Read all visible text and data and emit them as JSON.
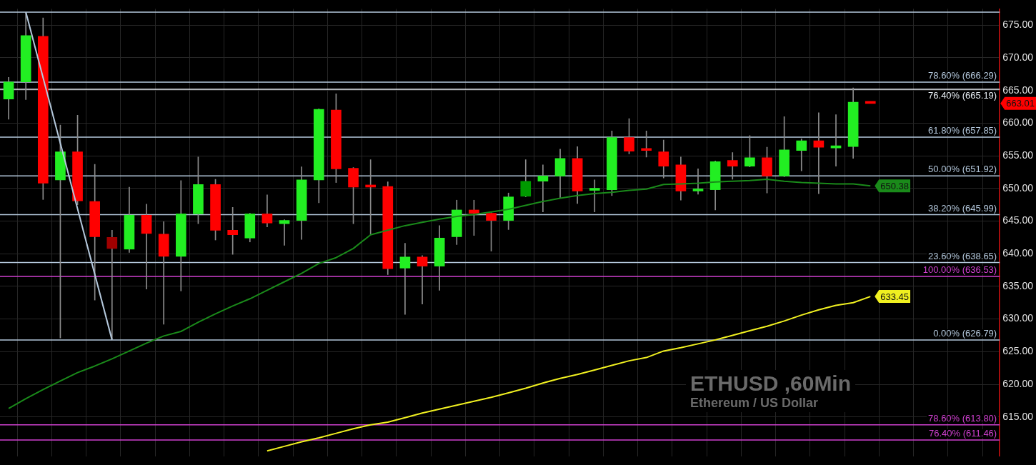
{
  "chart_data": {
    "type": "candlestick",
    "title": "ETHUSD ,60Min",
    "subtitle": "Ethereum / US Dollar",
    "categories": [
      null,
      null,
      null,
      null,
      null,
      null,
      null,
      null,
      null,
      null,
      null,
      null,
      null,
      null,
      null,
      null,
      null,
      null,
      null,
      null,
      null,
      null,
      null,
      null,
      null,
      null,
      null,
      null,
      null,
      null,
      null,
      null,
      null,
      null,
      null,
      null,
      null,
      null,
      null,
      null,
      null,
      null,
      null,
      null,
      null,
      null,
      null,
      null,
      null,
      null,
      null
    ],
    "ohlc": [
      [
        663.7,
        667.0,
        660.6,
        666.3
      ],
      [
        666.3,
        677.0,
        663.6,
        673.4
      ],
      [
        673.3,
        676.1,
        648.3,
        650.8
      ],
      [
        651.3,
        659.7,
        627.1,
        655.6
      ],
      [
        655.6,
        661.2,
        647.5,
        648.1
      ],
      [
        648.0,
        653.7,
        632.9,
        642.6
      ],
      [
        642.5,
        643.6,
        626.8,
        640.8
      ],
      [
        640.7,
        650.2,
        640.2,
        645.9
      ],
      [
        645.9,
        647.6,
        634.6,
        643.1
      ],
      [
        643.0,
        644.9,
        629.2,
        639.6
      ],
      [
        639.6,
        651.2,
        634.3,
        646.1
      ],
      [
        646.1,
        654.8,
        644.6,
        650.6
      ],
      [
        650.6,
        651.4,
        642.1,
        643.6
      ],
      [
        643.6,
        647.1,
        639.9,
        642.9
      ],
      [
        642.4,
        646.2,
        641.8,
        646.1
      ],
      [
        646.1,
        649.0,
        644.1,
        644.7
      ],
      [
        644.6,
        645.2,
        641.3,
        645.1
      ],
      [
        645.1,
        653.3,
        642.2,
        651.3
      ],
      [
        651.3,
        662.2,
        647.8,
        662.1
      ],
      [
        662.0,
        664.5,
        650.9,
        653.0
      ],
      [
        653.1,
        653.2,
        644.6,
        650.2
      ],
      [
        650.3,
        654.4,
        642.9,
        650.2
      ],
      [
        650.3,
        651.0,
        636.8,
        637.7
      ],
      [
        637.8,
        641.6,
        630.7,
        639.5
      ],
      [
        639.5,
        639.7,
        632.3,
        638.1
      ],
      [
        638.1,
        644.3,
        634.4,
        642.4
      ],
      [
        642.6,
        648.2,
        641.4,
        646.7
      ],
      [
        646.7,
        648.2,
        642.8,
        646.2
      ],
      [
        646.2,
        646.3,
        640.4,
        645.1
      ],
      [
        645.1,
        649.3,
        643.7,
        648.7
      ],
      [
        648.8,
        654.4,
        648.7,
        651.1
      ],
      [
        651.1,
        653.6,
        646.4,
        651.9
      ],
      [
        651.9,
        656.0,
        648.5,
        654.6
      ],
      [
        654.6,
        656.4,
        647.7,
        649.6
      ],
      [
        649.7,
        651.3,
        646.4,
        649.8
      ],
      [
        649.8,
        658.8,
        648.9,
        657.8
      ],
      [
        657.8,
        660.7,
        655.3,
        655.7
      ],
      [
        656.0,
        658.8,
        654.8,
        655.8
      ],
      [
        655.6,
        657.4,
        651.6,
        653.4
      ],
      [
        653.6,
        654.8,
        648.2,
        649.6
      ],
      [
        649.6,
        653.0,
        649.1,
        649.8
      ],
      [
        649.8,
        654.2,
        646.7,
        654.1
      ],
      [
        654.3,
        655.5,
        651.4,
        653.4
      ],
      [
        653.4,
        658.1,
        653.3,
        654.7
      ],
      [
        654.7,
        656.3,
        649.3,
        651.9
      ],
      [
        651.9,
        661.0,
        651.8,
        655.9
      ],
      [
        655.8,
        657.6,
        652.7,
        657.3
      ],
      [
        657.3,
        661.6,
        649.2,
        656.3
      ],
      [
        656.2,
        661.3,
        653.4,
        656.5
      ],
      [
        656.4,
        665.4,
        654.6,
        663.2
      ],
      [
        663.1,
        663.1,
        663.01,
        663.01
      ]
    ],
    "colors": [
      "#22ee22",
      "#22ee22",
      "#ff0000",
      "#22ee22",
      "#ff0000",
      "#ff0000",
      "#a00000",
      "#22ee22",
      "#ff0000",
      "#ff0000",
      "#22ee22",
      "#22ee22",
      "#ff0000",
      "#ff0000",
      "#22ee22",
      "#ff0000",
      "#22ee22",
      "#22ee22",
      "#22ee22",
      "#ff0000",
      "#ff0000",
      "#ff0000",
      "#ff0000",
      "#22ee22",
      "#ff0000",
      "#22ee22",
      "#22ee22",
      "#ff0000",
      "#ff0000",
      "#22ee22",
      "#009a00",
      "#22ee22",
      "#22ee22",
      "#ff0000",
      "#22ee22",
      "#22ee22",
      "#ff0000",
      "#ff0000",
      "#ff0000",
      "#ff0000",
      "#22ee22",
      "#22ee22",
      "#ff0000",
      "#22ee22",
      "#ff0000",
      "#22ee22",
      "#22ee22",
      "#ff0000",
      "#22ee22",
      "#22ee22",
      "#ff0000"
    ],
    "value_labels": [
      null,
      null,
      null,
      null,
      null,
      null,
      null,
      null,
      null,
      null,
      null,
      null,
      null,
      null,
      null,
      null,
      null,
      null,
      null,
      null,
      null,
      null,
      null,
      null,
      null,
      null,
      null,
      null,
      null,
      null,
      null,
      null,
      null,
      null,
      null,
      null,
      null,
      null,
      null,
      null,
      null,
      null,
      null,
      null,
      null,
      null,
      null,
      null,
      null,
      null,
      "663.01"
    ],
    "series": [
      {
        "type": "line",
        "color": "#1a8a1a",
        "values": [
          616.3,
          617.8,
          619.2,
          620.5,
          621.8,
          622.8,
          623.9,
          625.1,
          626.3,
          627.4,
          628.1,
          629.5,
          630.8,
          632.0,
          633.1,
          634.4,
          635.7,
          637.0,
          638.5,
          639.4,
          640.8,
          642.9,
          643.6,
          644.3,
          644.8,
          645.3,
          645.7,
          646.0,
          646.4,
          646.8,
          647.4,
          648.0,
          648.5,
          648.9,
          649.2,
          649.4,
          649.7,
          649.9,
          650.6,
          650.7,
          650.8,
          651.0,
          651.1,
          651.2,
          651.4,
          651.1,
          650.9,
          650.8,
          650.7,
          650.7,
          650.38
        ],
        "value_labels": [
          null,
          null,
          null,
          null,
          null,
          null,
          null,
          null,
          null,
          null,
          null,
          null,
          null,
          null,
          null,
          null,
          null,
          null,
          null,
          null,
          null,
          null,
          null,
          null,
          null,
          null,
          null,
          null,
          null,
          null,
          null,
          null,
          null,
          null,
          null,
          null,
          null,
          null,
          null,
          null,
          null,
          null,
          null,
          null,
          null,
          null,
          null,
          null,
          null,
          null,
          "650.38"
        ]
      },
      {
        "type": "line",
        "color": "#f0f020",
        "values": [
          null,
          null,
          null,
          null,
          null,
          null,
          null,
          null,
          null,
          null,
          null,
          null,
          null,
          null,
          null,
          609.8,
          610.5,
          611.2,
          611.8,
          612.5,
          613.2,
          613.8,
          614.2,
          614.9,
          615.6,
          616.2,
          616.8,
          617.4,
          618.0,
          618.7,
          619.4,
          620.2,
          620.9,
          621.5,
          622.2,
          622.9,
          623.6,
          624.1,
          625.1,
          625.6,
          626.2,
          626.8,
          627.5,
          628.2,
          628.9,
          629.7,
          630.6,
          631.4,
          632.1,
          632.5,
          633.45
        ],
        "value_labels": [
          null,
          null,
          null,
          null,
          null,
          null,
          null,
          null,
          null,
          null,
          null,
          null,
          null,
          null,
          null,
          null,
          null,
          null,
          null,
          null,
          null,
          null,
          null,
          null,
          null,
          null,
          null,
          null,
          null,
          null,
          null,
          null,
          null,
          null,
          null,
          null,
          null,
          null,
          null,
          null,
          null,
          null,
          null,
          null,
          null,
          null,
          null,
          null,
          null,
          null,
          "633.45"
        ]
      },
      {
        "type": "line",
        "color": "#b4c8dc",
        "values": [
          null,
          677.0,
          null,
          null,
          null,
          null,
          626.8,
          null,
          null,
          null,
          null,
          null,
          null,
          null,
          null,
          null,
          null,
          null,
          null,
          null,
          null,
          null,
          null,
          null,
          null,
          null,
          null,
          null,
          null,
          null,
          null,
          null,
          null,
          null,
          null,
          null,
          null,
          null,
          null,
          null,
          null,
          null,
          null,
          null,
          null,
          null,
          null,
          null,
          null,
          null,
          null
        ]
      }
    ],
    "ylim": [
      609,
      677.5
    ],
    "yticks": [
      {
        "value": 615,
        "label": "615.00"
      },
      {
        "value": 620,
        "label": "620.00"
      },
      {
        "value": 625,
        "label": "625.00"
      },
      {
        "value": 630,
        "label": "630.00"
      },
      {
        "value": 635,
        "label": "635.00"
      },
      {
        "value": 640,
        "label": "640.00"
      },
      {
        "value": 645,
        "label": "645.00"
      },
      {
        "value": 650,
        "label": "650.00"
      },
      {
        "value": 655,
        "label": "655.00"
      },
      {
        "value": 660,
        "label": "660.00"
      },
      {
        "value": 665,
        "label": "665.00"
      },
      {
        "value": 670,
        "label": "670.00"
      },
      {
        "value": 675,
        "label": "675.00"
      }
    ],
    "ref_lines": [
      {
        "axis": "y",
        "value": 677.0,
        "color": "#b4c8dc"
      },
      {
        "axis": "y",
        "value": 666.29,
        "label": "78.60% (666.29)",
        "color": "#b4c8dc"
      },
      {
        "axis": "y",
        "value": 665.19,
        "label": "76.40% (665.19)",
        "color": "#e8eef4"
      },
      {
        "axis": "y",
        "value": 657.85,
        "label": "61.80% (657.85)",
        "color": "#b4c8dc"
      },
      {
        "axis": "y",
        "value": 651.92,
        "label": "50.00% (651.92)",
        "color": "#b4c8dc"
      },
      {
        "axis": "y",
        "value": 645.99,
        "label": "38.20% (645.99)",
        "color": "#b4c8dc"
      },
      {
        "axis": "y",
        "value": 638.65,
        "label": "23.60% (638.65)",
        "color": "#b4c8dc"
      },
      {
        "axis": "y",
        "value": 636.53,
        "label": "100.00% (636.53)",
        "color": "#d040d0"
      },
      {
        "axis": "y",
        "value": 626.79,
        "label": "0.00% (626.79)",
        "color": "#b4c8dc"
      },
      {
        "axis": "y",
        "value": 613.8,
        "label": "78.60% (613.80)",
        "color": "#d040d0"
      },
      {
        "axis": "y",
        "value": 611.46,
        "label": "76.40% (611.46)",
        "color": "#d040d0"
      }
    ],
    "grid": true,
    "tick_labels": "y",
    "legend": false
  }
}
